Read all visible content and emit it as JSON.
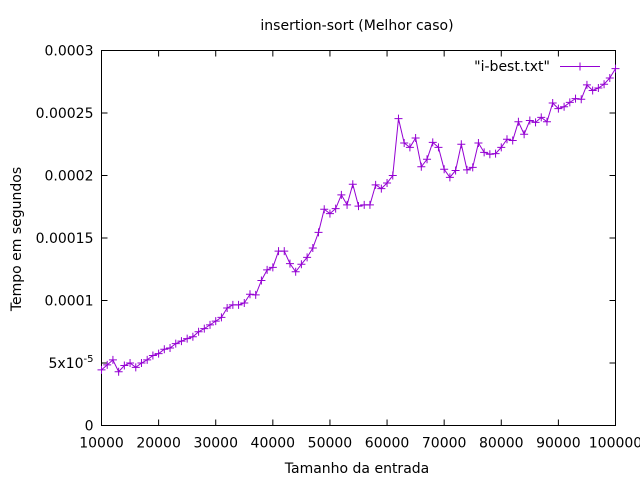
{
  "chart_data": {
    "type": "line",
    "title": "insertion-sort (Melhor caso)",
    "xlabel": "Tamanho da entrada",
    "ylabel": "Tempo em segundos",
    "xlim": [
      10000,
      100000
    ],
    "ylim": [
      0,
      0.0003
    ],
    "grid": false,
    "legend_position": "top-right",
    "x_ticks": [
      10000,
      20000,
      30000,
      40000,
      50000,
      60000,
      70000,
      80000,
      90000,
      100000
    ],
    "x_tick_labels": [
      "10000",
      "20000",
      "30000",
      "40000",
      "50000",
      "60000",
      "70000",
      "80000",
      "90000",
      "100000"
    ],
    "y_ticks": [
      0,
      5e-05,
      0.0001,
      0.00015,
      0.0002,
      0.00025,
      0.0003
    ],
    "y_tick_labels": [
      "0",
      "5x10-5",
      "0.0001",
      "0.00015",
      "0.0002",
      "0.00025",
      "0.0003"
    ],
    "series": [
      {
        "name": "\"i-best.txt\"",
        "color": "#9400d3",
        "marker": "plus",
        "x": [
          10000,
          11000,
          12000,
          13000,
          14000,
          15000,
          16000,
          17000,
          18000,
          19000,
          20000,
          21000,
          22000,
          23000,
          24000,
          25000,
          26000,
          27000,
          28000,
          29000,
          30000,
          31000,
          32000,
          33000,
          34000,
          35000,
          36000,
          37000,
          38000,
          39000,
          40000,
          41000,
          42000,
          43000,
          44000,
          45000,
          46000,
          47000,
          48000,
          49000,
          50000,
          51000,
          52000,
          53000,
          54000,
          55000,
          56000,
          57000,
          58000,
          59000,
          60000,
          61000,
          62000,
          63000,
          64000,
          65000,
          66000,
          67000,
          68000,
          69000,
          70000,
          71000,
          72000,
          73000,
          74000,
          75000,
          76000,
          77000,
          78000,
          79000,
          80000,
          81000,
          82000,
          83000,
          84000,
          85000,
          86000,
          87000,
          88000,
          89000,
          90000,
          91000,
          92000,
          93000,
          94000,
          95000,
          96000,
          97000,
          98000,
          99000,
          100000
        ],
        "y": [
          4.45e-05,
          4.85e-05,
          5.25e-05,
          4.3e-05,
          4.8e-05,
          5e-05,
          4.65e-05,
          5e-05,
          5.25e-05,
          5.6e-05,
          5.75e-05,
          6.1e-05,
          6.2e-05,
          6.55e-05,
          6.75e-05,
          6.95e-05,
          7.1e-05,
          7.5e-05,
          7.75e-05,
          8.05e-05,
          8.35e-05,
          8.65e-05,
          9.4e-05,
          9.65e-05,
          9.65e-05,
          9.8e-05,
          0.000105,
          0.0001045,
          0.000116,
          0.0001245,
          0.0001265,
          0.0001395,
          0.0001395,
          0.0001295,
          0.000123,
          0.000129,
          0.0001345,
          0.000142,
          0.0001545,
          0.000173,
          0.0001695,
          0.0001735,
          0.0001845,
          0.0001765,
          0.000193,
          0.0001755,
          0.0001765,
          0.0001765,
          0.0001925,
          0.0001895,
          0.000194,
          0.0002,
          0.0002455,
          0.000226,
          0.0002225,
          0.00023,
          0.000207,
          0.000213,
          0.0002265,
          0.0002225,
          0.000205,
          0.0001985,
          0.000204,
          0.000225,
          0.0002045,
          0.0002065,
          0.000226,
          0.0002185,
          0.000217,
          0.0002175,
          0.0002225,
          0.000229,
          0.000228,
          0.000243,
          0.000233,
          0.000244,
          0.0002425,
          0.0002465,
          0.000243,
          0.000258,
          0.0002535,
          0.000255,
          0.0002585,
          0.0002615,
          0.000261,
          0.0002725,
          0.000268,
          0.00027,
          0.000273,
          0.000278,
          0.0002855
        ]
      }
    ]
  }
}
